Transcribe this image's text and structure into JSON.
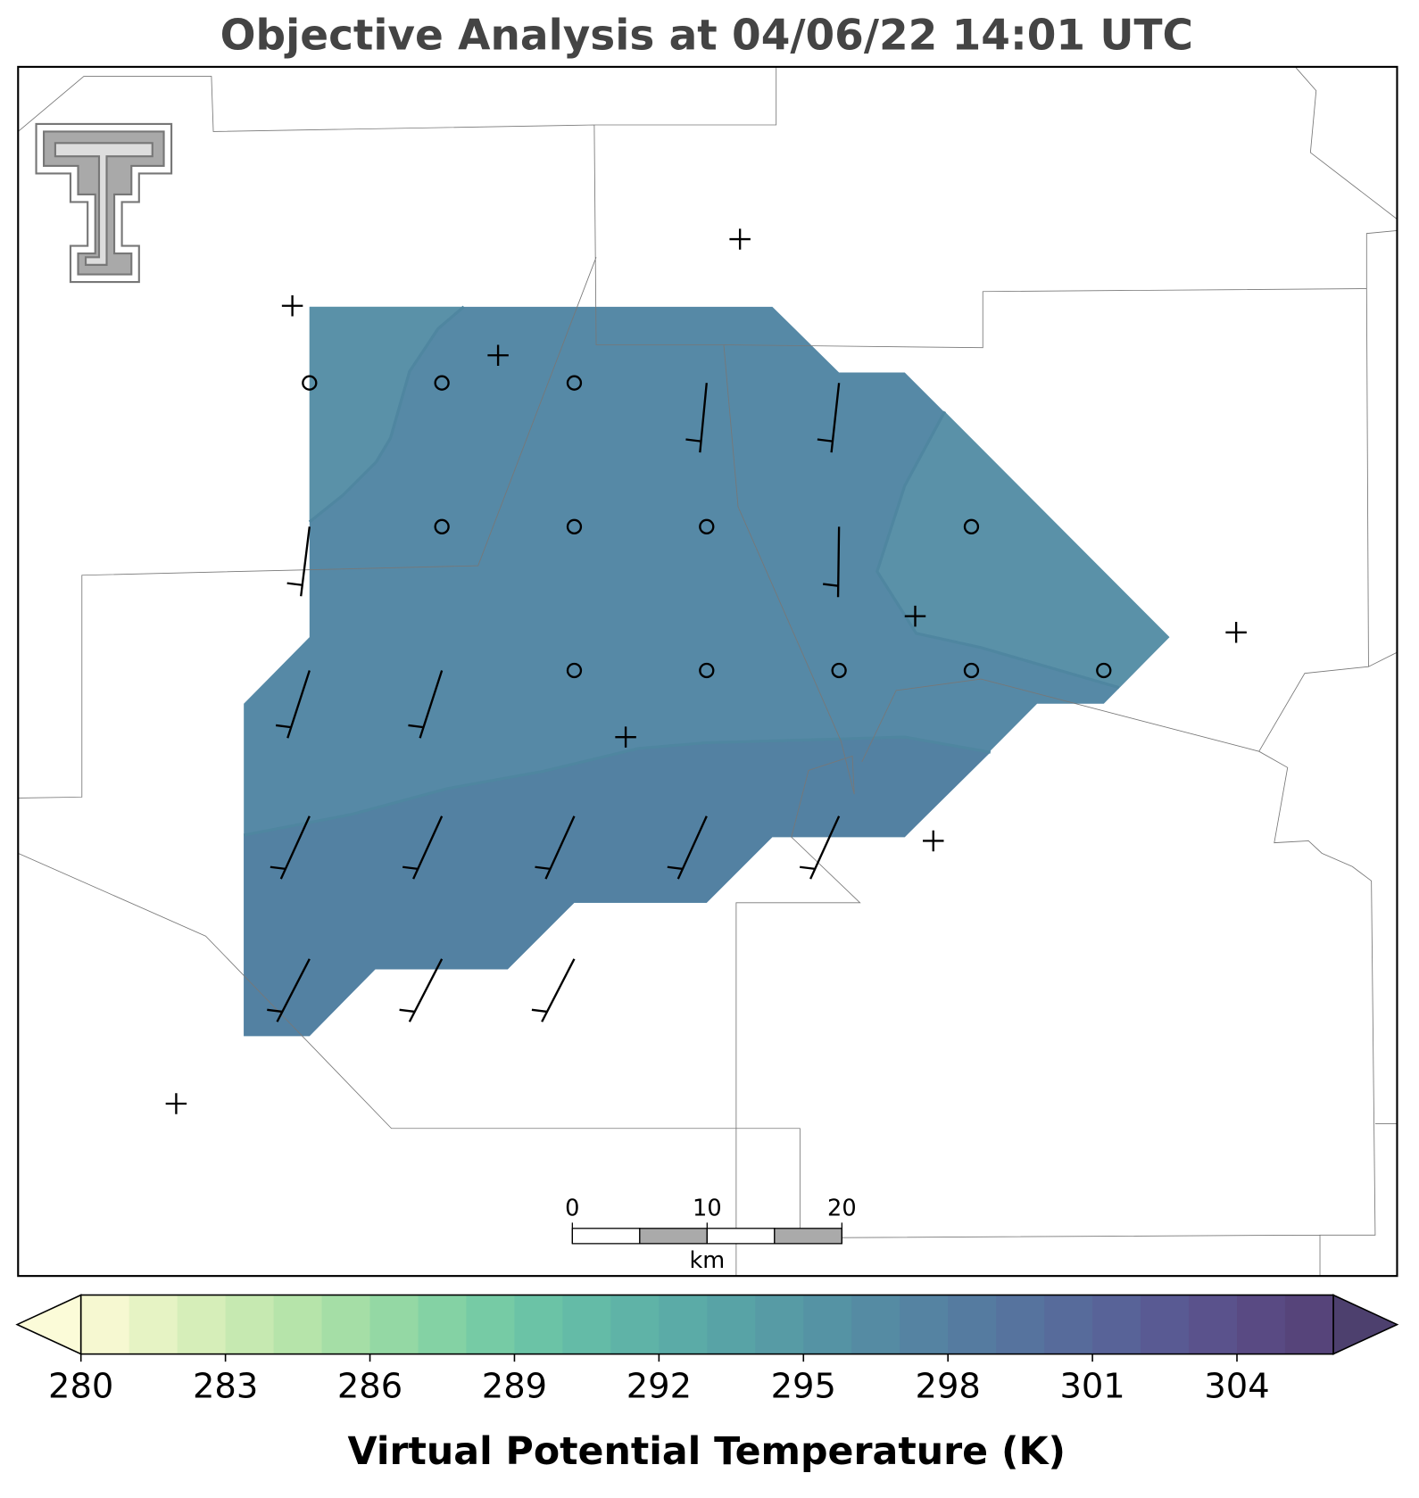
{
  "chart_data": {
    "type": "colorbar",
    "title": "Objective Analysis at 04/06/22 14:01 UTC",
    "colorbar": {
      "label": "Virtual Potential Temperature (K)",
      "levels": [
        280,
        281,
        282,
        283,
        284,
        285,
        286,
        287,
        288,
        289,
        290,
        291,
        292,
        293,
        294,
        295,
        296,
        297,
        298,
        299,
        300,
        301,
        302,
        303,
        304,
        305,
        306
      ],
      "colors": [
        "#f6f8d1",
        "#e6f3c4",
        "#d6eeb9",
        "#c6e9b1",
        "#b6e4aa",
        "#a5dea6",
        "#94d8a4",
        "#84d2a4",
        "#76cba5",
        "#6bc3a6",
        "#64bba7",
        "#5fb3a7",
        "#5baba7",
        "#58a3a6",
        "#579ba5",
        "#5593a4",
        "#558ba3",
        "#5583a2",
        "#557ba0",
        "#56739e",
        "#576b9b",
        "#586398",
        "#595a93",
        "#5a528c",
        "#594a83",
        "#56447a"
      ],
      "extend_colors": [
        "#fbfbd8",
        "#4d406e"
      ],
      "ticks": [
        280,
        283,
        286,
        289,
        292,
        295,
        298,
        301,
        304
      ]
    },
    "scale_bar": {
      "xlim": [
        0,
        20
      ],
      "ticks": [
        0,
        10,
        20
      ],
      "unit": "km"
    }
  }
}
